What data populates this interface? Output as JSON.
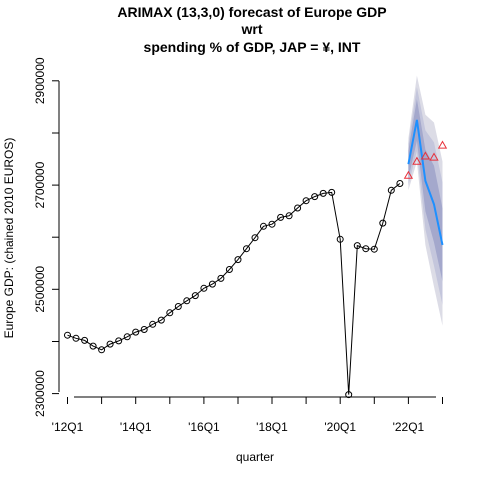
{
  "chart_data": {
    "type": "line",
    "title_lines": [
      "ARIMAX (13,3,0) forecast of  Europe GDP",
      "wrt",
      "spending % of GDP, JAP = ¥, INT"
    ],
    "xlabel": "quarter",
    "ylabel": "Europe GDP: (chained 2010 EUROS)",
    "xlim": [
      2011.75,
      2023.25
    ],
    "ylim": [
      2280000,
      2940000
    ],
    "x_ticks": [
      {
        "value": 2012.0,
        "label": "'12Q1"
      },
      {
        "value": 2014.0,
        "label": "'14Q1"
      },
      {
        "value": 2016.0,
        "label": "'16Q1"
      },
      {
        "value": 2018.0,
        "label": "'18Q1"
      },
      {
        "value": 2020.0,
        "label": "'20Q1"
      },
      {
        "value": 2022.0,
        "label": "'22Q1"
      }
    ],
    "x_minor_ticks": [
      2013.0,
      2015.0,
      2017.0,
      2019.0,
      2021.0,
      2023.0
    ],
    "y_ticks": [
      {
        "value": 2300000,
        "label": "2300000"
      },
      {
        "value": 2500000,
        "label": "2500000"
      },
      {
        "value": 2700000,
        "label": "2700000"
      },
      {
        "value": 2900000,
        "label": "2900000"
      }
    ],
    "y_minor_ticks": [
      2400000,
      2600000,
      2800000
    ],
    "series": [
      {
        "role": "observed",
        "color": "#000000",
        "marker": "circle",
        "x": [
          2012.0,
          2012.25,
          2012.5,
          2012.75,
          2013.0,
          2013.25,
          2013.5,
          2013.75,
          2014.0,
          2014.25,
          2014.5,
          2014.75,
          2015.0,
          2015.25,
          2015.5,
          2015.75,
          2016.0,
          2016.25,
          2016.5,
          2016.75,
          2017.0,
          2017.25,
          2017.5,
          2017.75,
          2018.0,
          2018.25,
          2018.5,
          2018.75,
          2019.0,
          2019.25,
          2019.5,
          2019.75,
          2020.0,
          2020.25,
          2020.5,
          2020.75,
          2021.0,
          2021.25,
          2021.5,
          2021.75
        ],
        "y": [
          2412000,
          2406000,
          2402000,
          2391000,
          2384000,
          2395000,
          2401000,
          2409000,
          2418000,
          2423000,
          2433000,
          2441000,
          2455000,
          2467000,
          2478000,
          2488000,
          2502000,
          2510000,
          2521000,
          2538000,
          2557000,
          2578000,
          2599000,
          2621000,
          2625000,
          2638000,
          2641000,
          2656000,
          2670000,
          2678000,
          2684000,
          2686000,
          2596000,
          2298000,
          2584000,
          2578000,
          2577000,
          2627000,
          2690000,
          2703000
        ]
      },
      {
        "role": "forecast",
        "color": "#1e90ff",
        "x": [
          2022.0,
          2022.25,
          2022.5,
          2022.75,
          2023.0
        ],
        "y": [
          2740000,
          2825000,
          2708000,
          2663000,
          2585000
        ]
      },
      {
        "role": "actual",
        "color": "#e8303a",
        "marker": "triangle",
        "x": [
          2022.0,
          2022.25,
          2022.5,
          2022.75,
          2023.0
        ],
        "y": [
          2718000,
          2745000,
          2755000,
          2753000,
          2776000
        ]
      }
    ],
    "intervals": [
      {
        "level": "outer",
        "color": "#dcdce6",
        "x": [
          2022.0,
          2022.25,
          2022.5,
          2022.75,
          2023.0
        ],
        "lower": [
          2690000,
          2745000,
          2585000,
          2505000,
          2430000
        ],
        "upper": [
          2790000,
          2910000,
          2835000,
          2820000,
          2745000
        ]
      },
      {
        "level": "middle",
        "color": "#c4c6dc",
        "x": [
          2022.0,
          2022.25,
          2022.5,
          2022.75,
          2023.0
        ],
        "lower": [
          2700000,
          2765000,
          2615000,
          2545000,
          2470000
        ],
        "upper": [
          2780000,
          2888000,
          2805000,
          2782000,
          2705000
        ]
      },
      {
        "level": "inner",
        "color": "#a4a8cc",
        "x": [
          2022.0,
          2022.25,
          2022.5,
          2022.75,
          2023.0
        ],
        "lower": [
          2713000,
          2785000,
          2650000,
          2590000,
          2515000
        ],
        "upper": [
          2767000,
          2865000,
          2768000,
          2737000,
          2655000
        ]
      }
    ]
  }
}
